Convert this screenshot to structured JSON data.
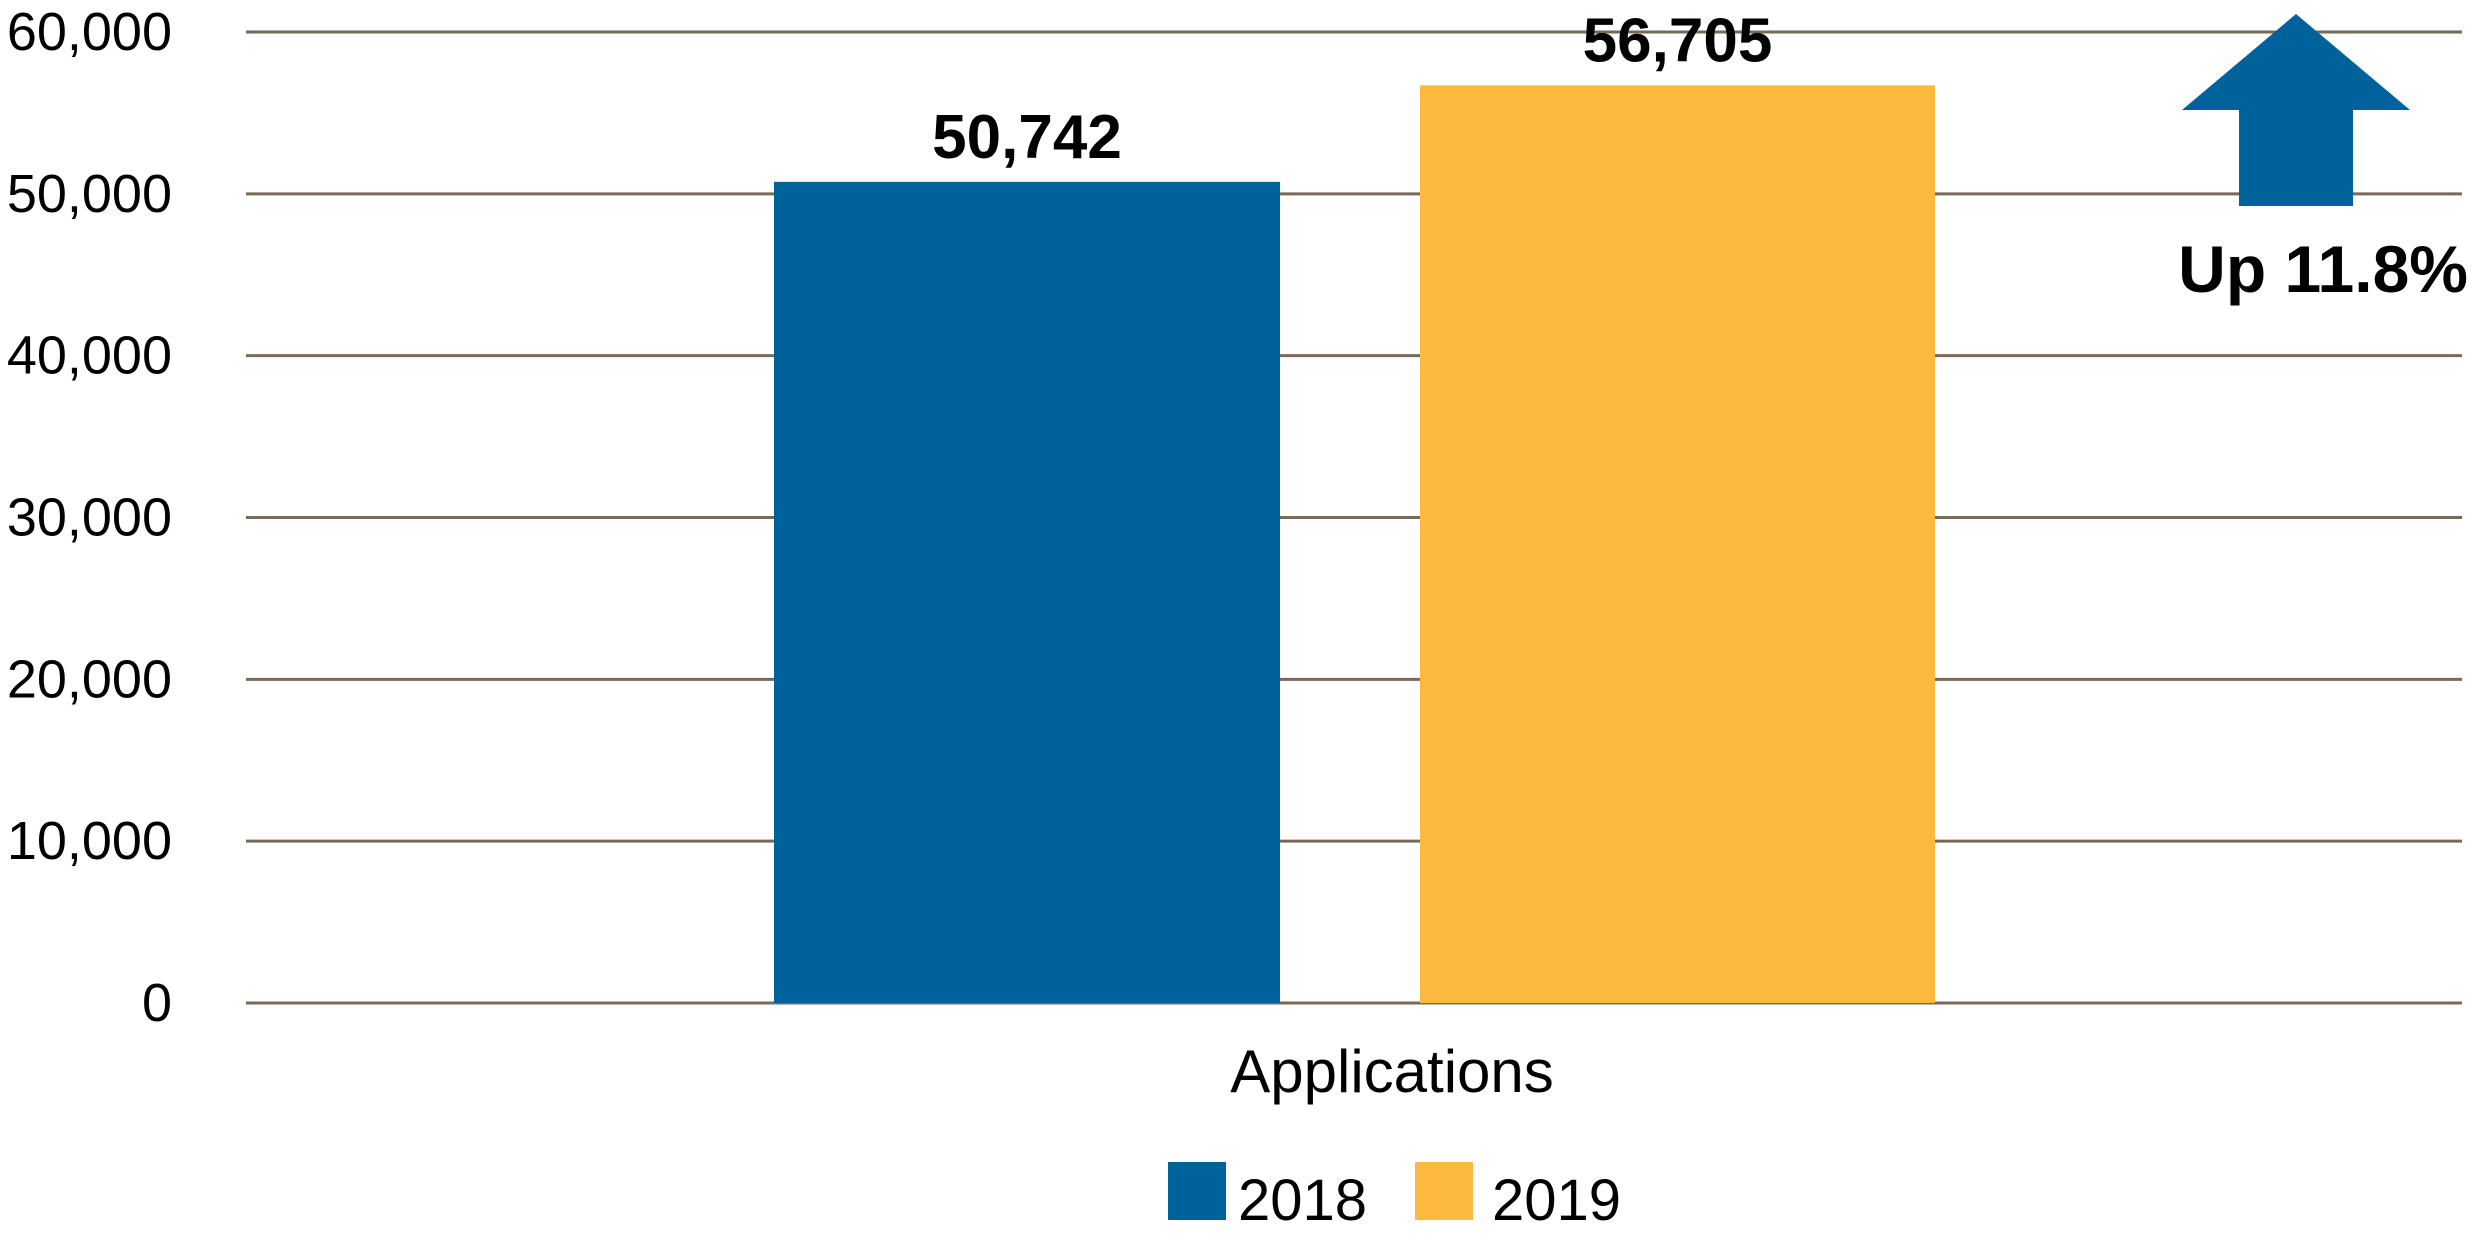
{
  "chart_data": {
    "type": "bar",
    "categories": [
      "Applications"
    ],
    "series": [
      {
        "name": "2018",
        "values": [
          50742
        ],
        "color": "#00629B"
      },
      {
        "name": "2019",
        "values": [
          56705
        ],
        "color": "#FBBA3F"
      }
    ],
    "data_labels": [
      "50,742",
      "56,705"
    ],
    "y_ticks": [
      0,
      10000,
      20000,
      30000,
      40000,
      50000,
      60000
    ],
    "y_tick_labels": [
      "0",
      "10,000",
      "20,000",
      "30,000",
      "40,000",
      "50,000",
      "60,000"
    ],
    "ylim": [
      0,
      60000
    ],
    "grid": true,
    "grid_color": "#7A6A55",
    "legend_position": "bottom",
    "title": "",
    "xlabel": "",
    "ylabel": "",
    "annotation": {
      "text": "Up 11.8%",
      "icon": "up-arrow-icon",
      "color": "#00629B"
    }
  }
}
